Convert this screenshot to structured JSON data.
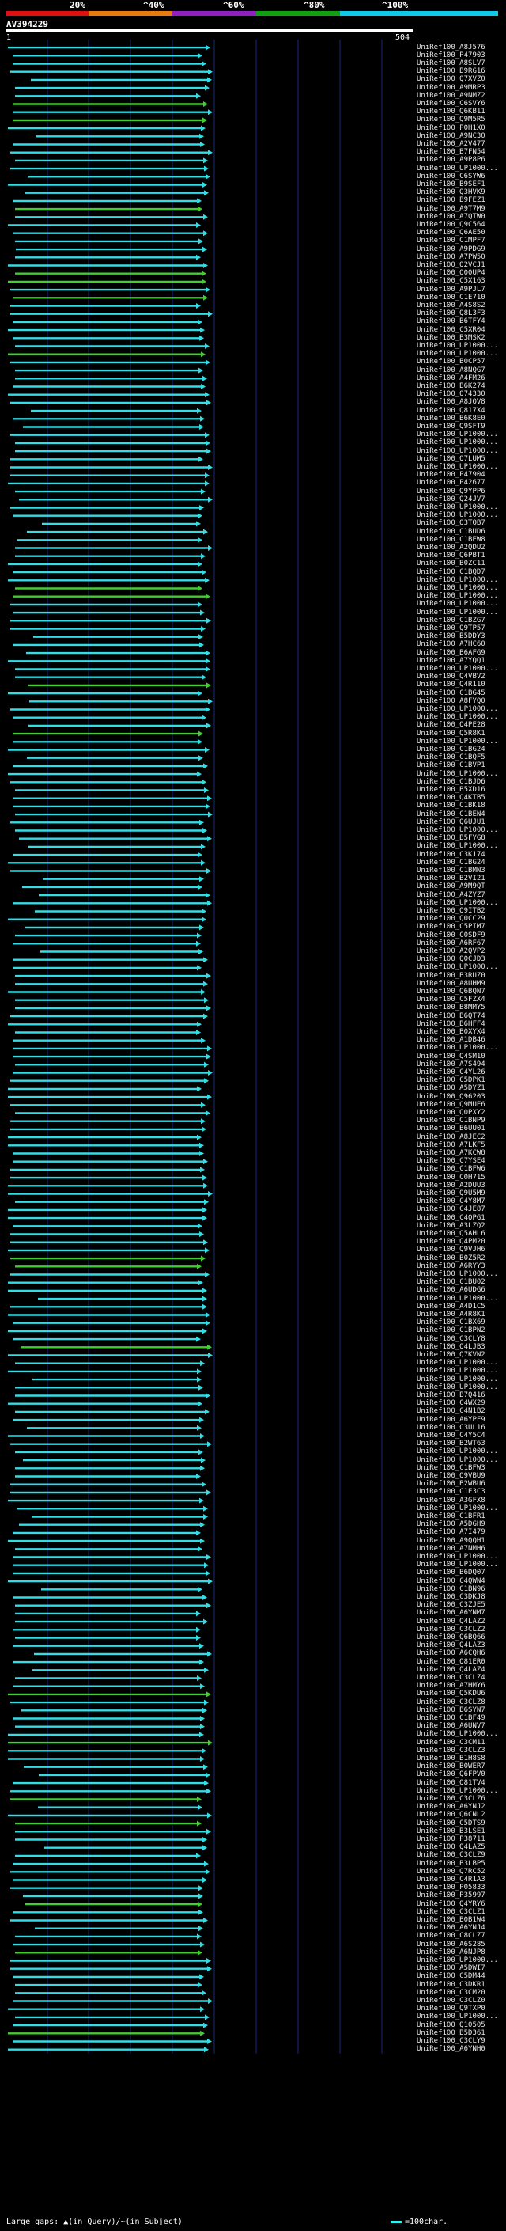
{
  "query": {
    "title": "AV394229",
    "start": "1",
    "end": "504"
  },
  "scale": {
    "labels": [
      "20%",
      "^40%",
      "^60%",
      "^80%",
      "^100%"
    ],
    "colors": [
      "#e01010",
      "#e87a10",
      "#9020c0",
      "#10a010",
      "#10c8e8"
    ]
  },
  "colors": {
    "hit_cyan": "#33dde6",
    "hit_green": "#44cc33",
    "arrow": "#ffffff",
    "grid": "#1a2a7a"
  },
  "hits": [
    "UniRef100_A8J576",
    "UniRef100_P47903",
    "UniRef100_A8SLV7",
    "UniRef100_B9RG16",
    "UniRef100_Q7XVZ0",
    "UniRef100_A9MRP3",
    "UniRef100_A9NMZ2",
    "UniRef100_C6SVY6",
    "UniRef100_Q6KB11",
    "UniRef100_Q9M5R5",
    "UniRef100_P0H1X0",
    "UniRef100_A9NC30",
    "UniRef100_A2V477",
    "UniRef100_B7FN54",
    "UniRef100_A9P8P6",
    "UniRef100_UP1000...",
    "UniRef100_C6SYW6",
    "UniRef100_B9SEF1",
    "UniRef100_Q3HVK9",
    "UniRef100_B9FEZ1",
    "UniRef100_A9T7M9",
    "UniRef100_A7QTW0",
    "UniRef100_Q9C564",
    "UniRef100_Q6AE50",
    "UniRef100_C1MPF7",
    "UniRef100_A9PDG9",
    "UniRef100_A7PW50",
    "UniRef100_Q2VCJ1",
    "UniRef100_Q00UP4",
    "UniRef100_C5X163",
    "UniRef100_A9PJL7",
    "UniRef100_C1E710",
    "UniRef100_A4S8S2",
    "UniRef100_Q8L3F3",
    "UniRef100_B6TFY4",
    "UniRef100_C5XR04",
    "UniRef100_B3MSK2",
    "UniRef100_UP1000...",
    "UniRef100_UP1000...",
    "UniRef100_B0CP57",
    "UniRef100_A8NQG7",
    "UniRef100_A4FM26",
    "UniRef100_B6K274",
    "UniRef100_Q74330",
    "UniRef100_A8JQV8",
    "UniRef100_Q817X4",
    "UniRef100_B6K8E0",
    "UniRef100_Q9SFT9",
    "UniRef100_UP1000...",
    "UniRef100_UP1000...",
    "UniRef100_UP1000...",
    "UniRef100_Q7LUM5",
    "UniRef100_UP1000...",
    "UniRef100_P47904",
    "UniRef100_P42677",
    "UniRef100_Q9YPP6",
    "UniRef100_Q24JV7",
    "UniRef100_UP1000...",
    "UniRef100_UP1000...",
    "UniRef100_Q3TQB7",
    "UniRef100_C1BUD6",
    "UniRef100_C1BEW8",
    "UniRef100_A2QDU2",
    "UniRef100_Q6PBT1",
    "UniRef100_B0ZC11",
    "UniRef100_C1BQD7",
    "UniRef100_UP1000...",
    "UniRef100_UP1000...",
    "UniRef100_UP1000...",
    "UniRef100_UP1000...",
    "UniRef100_UP1000...",
    "UniRef100_C1BZG7",
    "UniRef100_Q9TP57",
    "UniRef100_B5DDY3",
    "UniRef100_A7HC60",
    "UniRef100_B6AFG9",
    "UniRef100_A7YQQ1",
    "UniRef100_UP1000...",
    "UniRef100_Q4VBV2",
    "UniRef100_Q4R110",
    "UniRef100_C1BG45",
    "UniRef100_A8FYQ0",
    "UniRef100_UP1000...",
    "UniRef100_UP1000...",
    "UniRef100_Q4PE28",
    "UniRef100_Q5R8K1",
    "UniRef100_UP1000...",
    "UniRef100_C1BG24",
    "UniRef100_C1BQF5",
    "UniRef100_C1BVP1",
    "UniRef100_UP1000...",
    "UniRef100_C1BJD6",
    "UniRef100_B5XD16",
    "UniRef100_Q4KTB5",
    "UniRef100_C1BK18",
    "UniRef100_C1BEN4",
    "UniRef100_Q6UJU1",
    "UniRef100_UP1000...",
    "UniRef100_B5FYG8",
    "UniRef100_UP1000...",
    "UniRef100_C3K174",
    "UniRef100_C1BG24",
    "UniRef100_C1BMN3",
    "UniRef100_B2VI21",
    "UniRef100_A9M9QT",
    "UniRef100_A4ZYZ7",
    "UniRef100_UP1000...",
    "UniRef100_Q9ITB2",
    "UniRef100_Q0CC29",
    "UniRef100_C5PIM7",
    "UniRef100_C0SDF9",
    "UniRef100_A6RF67",
    "UniRef100_A2QVP2",
    "UniRef100_Q0CJD3",
    "UniRef100_UP1000...",
    "UniRef100_B3RUZ0",
    "UniRef100_A8UHM9",
    "UniRef100_Q6BQN7",
    "UniRef100_C5FZX4",
    "UniRef100_B8MMY5",
    "UniRef100_B6QT74",
    "UniRef100_B6HFF4",
    "UniRef100_B0XYX4",
    "UniRef100_A1DB46",
    "UniRef100_UP1000...",
    "UniRef100_Q4SM10",
    "UniRef100_A7S494",
    "UniRef100_C4YL26",
    "UniRef100_C5DPK1",
    "UniRef100_A5DYZ1",
    "UniRef100_Q96203",
    "UniRef100_Q9MUE6",
    "UniRef100_Q0PXY2",
    "UniRef100_C1BNP9",
    "UniRef100_B6UU01",
    "UniRef100_A8JEC2",
    "UniRef100_A7LKF5",
    "UniRef100_A7KCW8",
    "UniRef100_C7YSE4",
    "UniRef100_C1BFW6",
    "UniRef100_C0H715",
    "UniRef100_A2DUU3",
    "UniRef100_Q9U5M9",
    "UniRef100_C4Y8M7",
    "UniRef100_C4JE87",
    "UniRef100_C4QPG1",
    "UniRef100_A3LZQ2",
    "UniRef100_Q5AHL6",
    "UniRef100_Q4PM20",
    "UniRef100_Q9VJH6",
    "UniRef100_B0Z5R2",
    "UniRef100_A6RYY3",
    "UniRef100_UP1000...",
    "UniRef100_C1BU02",
    "UniRef100_A6UDG6",
    "UniRef100_UP1000...",
    "UniRef100_A4D1C5",
    "UniRef100_A4R8K1",
    "UniRef100_C1BX69",
    "UniRef100_C1BPN2",
    "UniRef100_C3CLY8",
    "UniRef100_Q4LJB3",
    "UniRef100_Q7KVN2",
    "UniRef100_UP1000...",
    "UniRef100_UP1000...",
    "UniRef100_UP1000...",
    "UniRef100_UP1000...",
    "UniRef100_B7Q416",
    "UniRef100_C4WX29",
    "UniRef100_C4N1B2",
    "UniRef100_A6YPF9",
    "UniRef100_C3UL16",
    "UniRef100_C4Y5C4",
    "UniRef100_B2WT63",
    "UniRef100_UP1000...",
    "UniRef100_UP1000...",
    "UniRef100_C1BFW3",
    "UniRef100_Q9VBU9",
    "UniRef100_B2WBU6",
    "UniRef100_C1E3C3",
    "UniRef100_A3GFX8",
    "UniRef100_UP1000...",
    "UniRef100_C1BFR1",
    "UniRef100_A5DGH9",
    "UniRef100_A7I479",
    "UniRef100_A9QQH1",
    "UniRef100_A7NMH6",
    "UniRef100_UP1000...",
    "UniRef100_UP1000...",
    "UniRef100_B6DQ07",
    "UniRef100_C4QWN4",
    "UniRef100_C1BN96",
    "UniRef100_C3DKJ8",
    "UniRef100_C3ZJE5",
    "UniRef100_A6YNM7",
    "UniRef100_Q4LAZ2",
    "UniRef100_C3CLZ2",
    "UniRef100_Q6BQ66",
    "UniRef100_Q4LAZ3",
    "UniRef100_A6CQH6",
    "UniRef100_Q81ER0",
    "UniRef100_Q4LAZ4",
    "UniRef100_C3CLZ4",
    "UniRef100_A7HMY6",
    "UniRef100_Q5KDU6",
    "UniRef100_C3CLZ8",
    "UniRef100_B6SYN7",
    "UniRef100_C1BF49",
    "UniRef100_A6UNV7",
    "UniRef100_UP1000...",
    "UniRef100_C3CM11",
    "UniRef100_C3CLZ3",
    "UniRef100_B1H8S8",
    "UniRef100_B0WER7",
    "UniRef100_Q6FPV0",
    "UniRef100_Q81TV4",
    "UniRef100_UP1000...",
    "UniRef100_C3CLZ6",
    "UniRef100_A6YNJ2",
    "UniRef100_Q6CNL2",
    "UniRef100_C5DTS9",
    "UniRef100_B3LSE1",
    "UniRef100_P38711",
    "UniRef100_Q4LAZ5",
    "UniRef100_C3CLZ9",
    "UniRef100_B3LBP5",
    "UniRef100_Q7RC52",
    "UniRef100_C4R1A3",
    "UniRef100_P05833",
    "UniRef100_P35997",
    "UniRef100_Q4YRY6",
    "UniRef100_C3CLZ1",
    "UniRef100_B0B1W4",
    "UniRef100_A6YNJ4",
    "UniRef100_C8CLZ7",
    "UniRef100_A6S285",
    "UniRef100_A6NJP8",
    "UniRef100_UP1000...",
    "UniRef100_A5DWI7",
    "UniRef100_C5DM44",
    "UniRef100_C3DKR1",
    "UniRef100_C3CM20",
    "UniRef100_C3CLZ0",
    "UniRef100_Q9TXP0",
    "UniRef100_UP1000...",
    "UniRef100_Q10505",
    "UniRef100_B5D361",
    "UniRef100_C3CLY9",
    "UniRef100_A6YNH0"
  ],
  "footer": {
    "legend": "Large gaps: ▲(in Query)/~(in Subject)",
    "unit": "=100char."
  }
}
